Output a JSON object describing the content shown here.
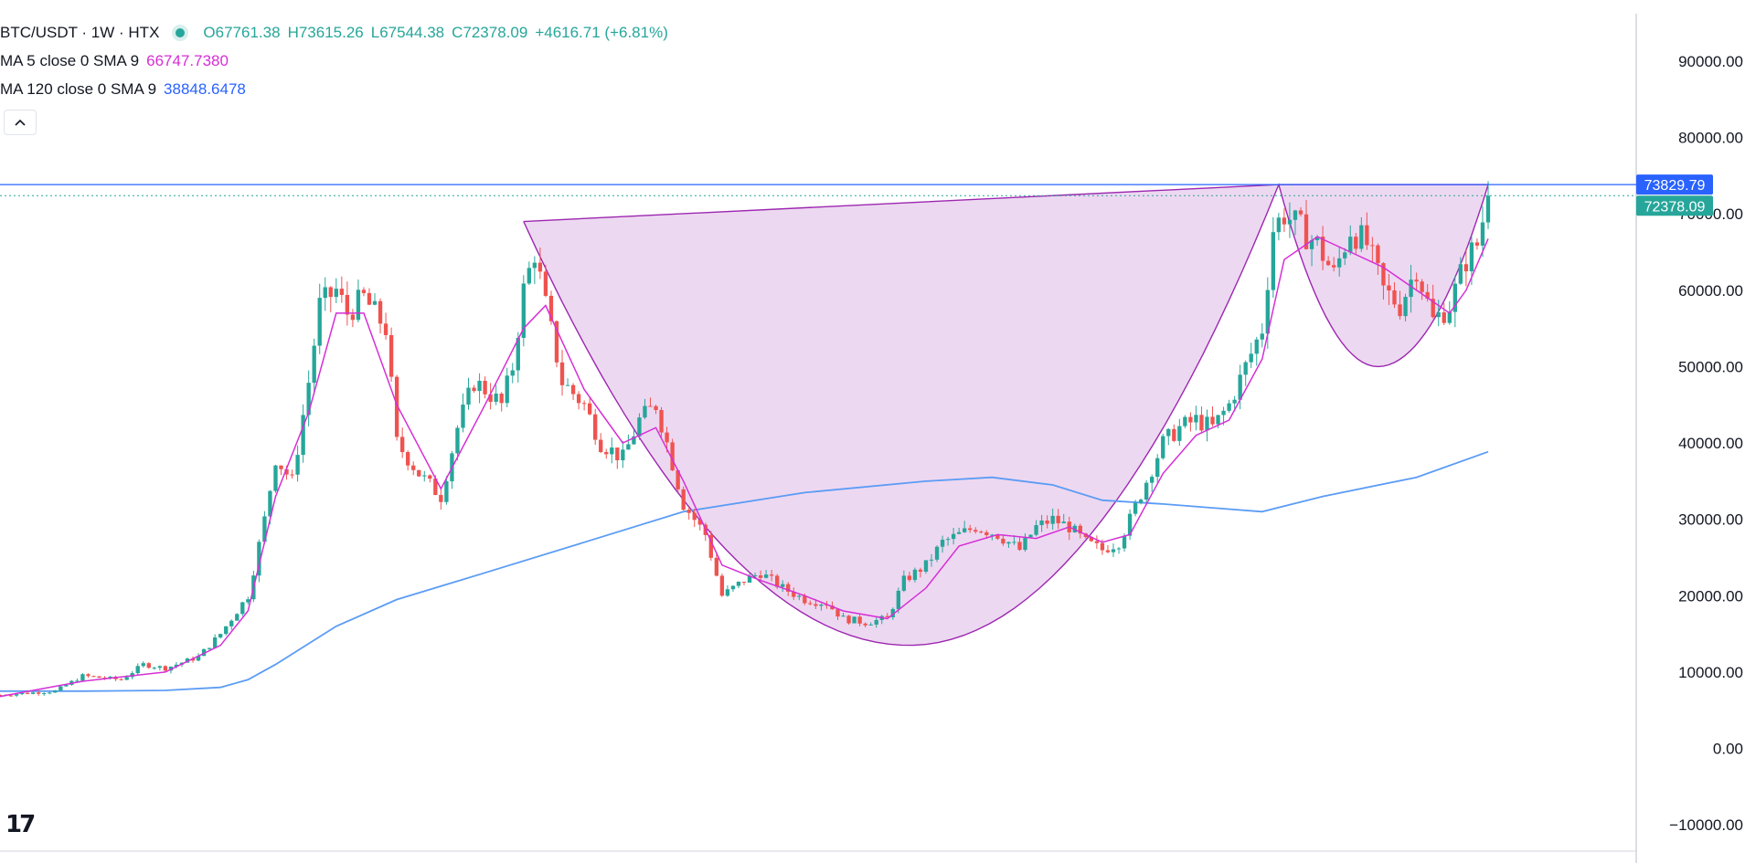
{
  "header": {
    "symbol": "BTC/USDT · 1W · HTX",
    "open": "O67761.38",
    "high": "H73615.26",
    "low": "L67544.38",
    "close": "C72378.09",
    "change": "+4616.71 (+6.81%)",
    "ma5_label": "MA 5 close 0 SMA 9",
    "ma5_value": "66747.7380",
    "ma120_label": "MA 120 close 0 SMA 9",
    "ma120_value": "38848.6478",
    "collapse_icon": "chevron-up-icon",
    "logo_text": "17"
  },
  "colors": {
    "up": "#26a69a",
    "down": "#ef5350",
    "ma5": "#d62fd6",
    "ma120": "#2962ff",
    "pattern_fill": "#e1bee7",
    "pattern_stroke": "#9c27b0",
    "resistance_line": "#2962ff"
  },
  "chart_data": {
    "type": "candlestick",
    "title": "BTC/USDT · 1W · HTX",
    "ylim": [
      -15000,
      98000
    ],
    "y_ticks": [
      "90000.00",
      "80000.00",
      "70000.00",
      "60000.00",
      "50000.00",
      "40000.00",
      "30000.00",
      "20000.00",
      "10000.00",
      "0.00",
      "−10000.00"
    ],
    "price_tags": {
      "resistance": "73829.79",
      "last": "72378.09"
    },
    "resistance_level": 73829.79,
    "last_price": 72378.09,
    "close_path": [
      [
        0,
        7000
      ],
      [
        10,
        7500
      ],
      [
        15,
        9500
      ],
      [
        22,
        9000
      ],
      [
        26,
        11000
      ],
      [
        30,
        10500
      ],
      [
        36,
        12000
      ],
      [
        40,
        15000
      ],
      [
        45,
        20000
      ],
      [
        48,
        30000
      ],
      [
        50,
        38000
      ],
      [
        53,
        35000
      ],
      [
        56,
        48000
      ],
      [
        58,
        58000
      ],
      [
        61,
        60000
      ],
      [
        63,
        57000
      ],
      [
        66,
        59000
      ],
      [
        70,
        55000
      ],
      [
        72,
        40000
      ],
      [
        76,
        36000
      ],
      [
        80,
        33000
      ],
      [
        83,
        42000
      ],
      [
        86,
        48000
      ],
      [
        88,
        47000
      ],
      [
        91,
        45000
      ],
      [
        93,
        50000
      ],
      [
        95,
        60000
      ],
      [
        97,
        65000
      ],
      [
        99,
        58000
      ],
      [
        102,
        48000
      ],
      [
        106,
        45000
      ],
      [
        109,
        40000
      ],
      [
        113,
        38000
      ],
      [
        116,
        43000
      ],
      [
        119,
        45000
      ],
      [
        121,
        40000
      ],
      [
        124,
        32000
      ],
      [
        128,
        28000
      ],
      [
        131,
        20000
      ],
      [
        135,
        22000
      ],
      [
        138,
        23000
      ],
      [
        142,
        21000
      ],
      [
        146,
        19500
      ],
      [
        150,
        19000
      ],
      [
        153,
        17000
      ],
      [
        157,
        16500
      ],
      [
        161,
        17000
      ],
      [
        164,
        22000
      ],
      [
        168,
        24000
      ],
      [
        171,
        27000
      ],
      [
        174,
        28000
      ],
      [
        177,
        29000
      ],
      [
        181,
        28000
      ],
      [
        185,
        26000
      ],
      [
        188,
        29000
      ],
      [
        191,
        30000
      ],
      [
        194,
        29000
      ],
      [
        197,
        27000
      ],
      [
        200,
        26000
      ],
      [
        203,
        27000
      ],
      [
        205,
        30000
      ],
      [
        208,
        35000
      ],
      [
        211,
        40000
      ],
      [
        214,
        42000
      ],
      [
        217,
        43000
      ],
      [
        220,
        42000
      ],
      [
        223,
        45000
      ],
      [
        226,
        50000
      ],
      [
        229,
        55000
      ],
      [
        231,
        68000
      ],
      [
        233,
        70000
      ],
      [
        236,
        68000
      ],
      [
        239,
        66000
      ],
      [
        242,
        62000
      ],
      [
        245,
        68000
      ],
      [
        248,
        66000
      ],
      [
        251,
        60000
      ],
      [
        254,
        58000
      ],
      [
        257,
        63000
      ],
      [
        260,
        56000
      ],
      [
        263,
        58000
      ],
      [
        266,
        64000
      ],
      [
        268,
        66000
      ],
      [
        270,
        72378.09
      ]
    ],
    "ma5_path": [
      [
        0,
        6800
      ],
      [
        15,
        8800
      ],
      [
        30,
        10000
      ],
      [
        40,
        13500
      ],
      [
        45,
        18000
      ],
      [
        50,
        33000
      ],
      [
        56,
        44000
      ],
      [
        61,
        57000
      ],
      [
        66,
        57000
      ],
      [
        72,
        45000
      ],
      [
        80,
        34000
      ],
      [
        88,
        45000
      ],
      [
        95,
        55000
      ],
      [
        99,
        58000
      ],
      [
        106,
        47000
      ],
      [
        113,
        40000
      ],
      [
        119,
        42000
      ],
      [
        124,
        35000
      ],
      [
        131,
        24000
      ],
      [
        138,
        22000
      ],
      [
        146,
        20000
      ],
      [
        153,
        18000
      ],
      [
        161,
        17000
      ],
      [
        168,
        21000
      ],
      [
        174,
        26500
      ],
      [
        181,
        28000
      ],
      [
        188,
        27500
      ],
      [
        194,
        29000
      ],
      [
        200,
        27000
      ],
      [
        205,
        28000
      ],
      [
        211,
        36000
      ],
      [
        217,
        41000
      ],
      [
        223,
        43000
      ],
      [
        229,
        51000
      ],
      [
        233,
        64000
      ],
      [
        239,
        67000
      ],
      [
        245,
        65000
      ],
      [
        251,
        63000
      ],
      [
        257,
        60000
      ],
      [
        263,
        57000
      ],
      [
        266,
        60000
      ],
      [
        270,
        66747.738
      ]
    ],
    "ma120_path": [
      [
        0,
        7500
      ],
      [
        15,
        7500
      ],
      [
        30,
        7600
      ],
      [
        40,
        8000
      ],
      [
        45,
        9000
      ],
      [
        50,
        11000
      ],
      [
        61,
        16000
      ],
      [
        72,
        19500
      ],
      [
        88,
        23000
      ],
      [
        106,
        27000
      ],
      [
        124,
        31000
      ],
      [
        146,
        33500
      ],
      [
        168,
        35000
      ],
      [
        180,
        35500
      ],
      [
        191,
        34500
      ],
      [
        200,
        32500
      ],
      [
        211,
        32000
      ],
      [
        220,
        31500
      ],
      [
        229,
        31000
      ],
      [
        240,
        33000
      ],
      [
        257,
        35500
      ],
      [
        270,
        38848.6478
      ]
    ],
    "pattern": {
      "label": "cup and handle",
      "cup": {
        "rim_left": [
          95,
          69000
        ],
        "rim_right": [
          232,
          73829.79
        ],
        "bottom": [
          165,
          13500
        ]
      },
      "handle": {
        "left": [
          232,
          73829.79
        ],
        "right": [
          270,
          73829.79
        ],
        "bottom": [
          250,
          50000
        ]
      }
    }
  }
}
